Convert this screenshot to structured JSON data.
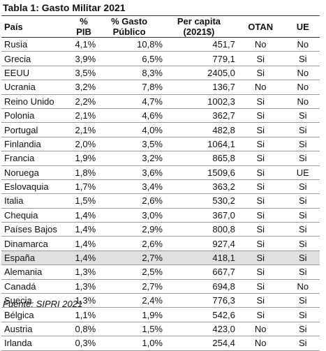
{
  "title": "Tabla 1: Gasto Militar 2021",
  "headers": [
    "País",
    "% PIB",
    "% Gasto Público",
    "Per capita (2021$)",
    "OTAN",
    "UE"
  ],
  "rows": [
    [
      "Rusia",
      "4,1%",
      "10,8%",
      "451,7",
      "No",
      "No"
    ],
    [
      "Grecia",
      "3,9%",
      "6,5%",
      "779,1",
      "Si",
      "Si"
    ],
    [
      "EEUU",
      "3,5%",
      "8,3%",
      "2405,0",
      "Si",
      "No"
    ],
    [
      "Ucrania",
      "3,2%",
      "7,8%",
      "136,7",
      "No",
      "No"
    ],
    [
      "Reino Unido",
      "2,2%",
      "4,7%",
      "1002,3",
      "Si",
      "No"
    ],
    [
      "Polonia",
      "2,1%",
      "4,6%",
      "362,7",
      "Si",
      "Si"
    ],
    [
      "Portugal",
      "2,1%",
      "4,0%",
      "482,8",
      "Si",
      "Si"
    ],
    [
      "Finlandia",
      "2,0%",
      "3,5%",
      "1064,1",
      "Si",
      "Si"
    ],
    [
      "Francia",
      "1,9%",
      "3,2%",
      "865,8",
      "Si",
      "Si"
    ],
    [
      "Noruega",
      "1,8%",
      "3,6%",
      "1509,6",
      "Si",
      "UE"
    ],
    [
      "Eslovaquia",
      "1,7%",
      "3,4%",
      "363,2",
      "Si",
      "Si"
    ],
    [
      "Italia",
      "1,5%",
      "2,6%",
      "530,2",
      "Si",
      "Si"
    ],
    [
      "Chequia",
      "1,4%",
      "3,0%",
      "367,0",
      "Si",
      "Si"
    ],
    [
      "Países Bajos",
      "1,4%",
      "2,9%",
      "800,8",
      "Si",
      "Si"
    ],
    [
      "Dinamarca",
      "1,4%",
      "2,6%",
      "927,4",
      "Si",
      "Si"
    ],
    [
      "España",
      "1,4%",
      "2,7%",
      "418,1",
      "Si",
      "Si"
    ],
    [
      "Alemania",
      "1,3%",
      "2,5%",
      "667,7",
      "Si",
      "Si"
    ],
    [
      "Canadá",
      "1,3%",
      "2,7%",
      "694,8",
      "Si",
      "No"
    ],
    [
      "Suecia",
      "1,3%",
      "2,4%",
      "776,3",
      "Si",
      "Si"
    ],
    [
      "Bélgica",
      "1,1%",
      "1,9%",
      "542,6",
      "Si",
      "Si"
    ],
    [
      "Austria",
      "0,8%",
      "1,5%",
      "423,0",
      "No",
      "Si"
    ],
    [
      "Irlanda",
      "0,3%",
      "1,0%",
      "254,4",
      "No",
      "Si"
    ]
  ],
  "highlighted_row": "España",
  "highlight_color": "#e0e0e0",
  "source": "Fuente: SIPRI 2021"
}
